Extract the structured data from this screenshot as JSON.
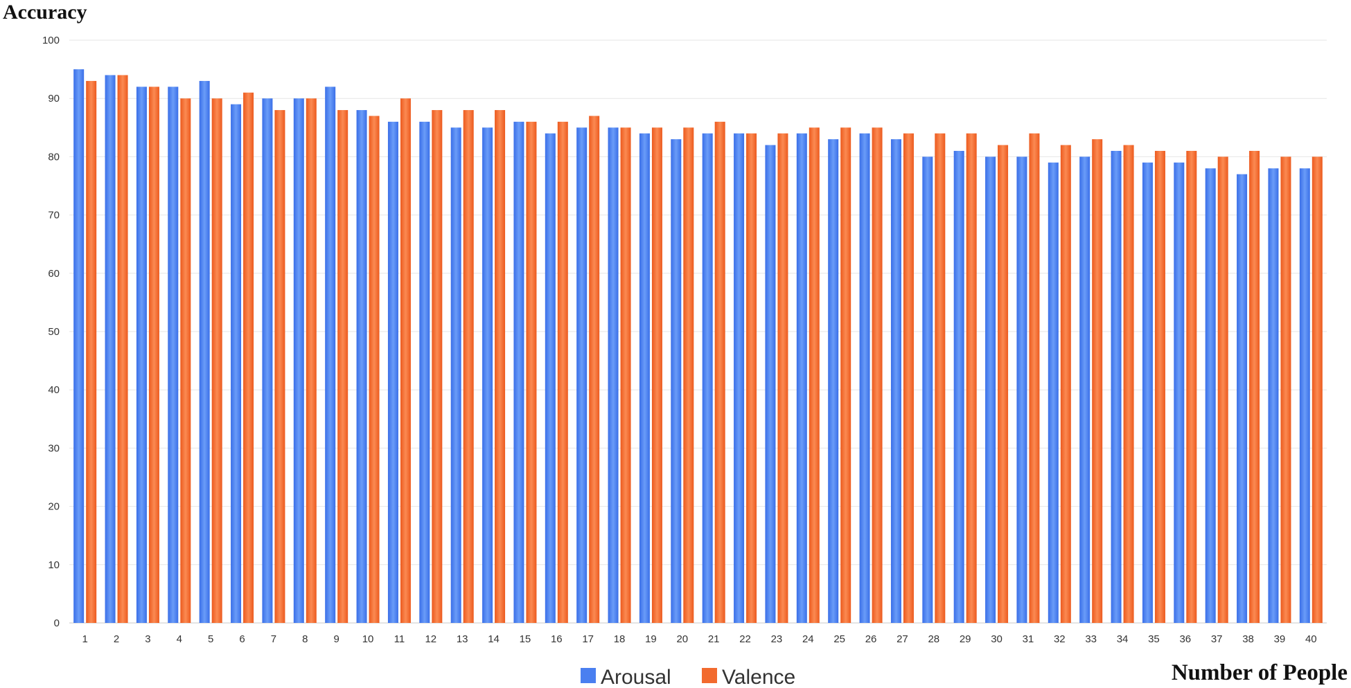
{
  "chart_data": {
    "type": "bar",
    "ylabel": "Accuracy",
    "xlabel": "Number of People",
    "ylim": [
      0,
      100
    ],
    "yticks": [
      0,
      10,
      20,
      30,
      40,
      50,
      60,
      70,
      80,
      90,
      100
    ],
    "grid": true,
    "legend_position": "bottom",
    "categories": [
      "1",
      "2",
      "3",
      "4",
      "5",
      "6",
      "7",
      "8",
      "9",
      "10",
      "11",
      "12",
      "13",
      "14",
      "15",
      "16",
      "17",
      "18",
      "19",
      "20",
      "21",
      "22",
      "23",
      "24",
      "25",
      "26",
      "27",
      "28",
      "29",
      "30",
      "31",
      "32",
      "33",
      "34",
      "35",
      "36",
      "37",
      "38",
      "39",
      "40"
    ],
    "series": [
      {
        "name": "Arousal",
        "color": "#4a7ff0",
        "values": [
          95,
          94,
          92,
          92,
          93,
          89,
          90,
          90,
          92,
          88,
          86,
          86,
          85,
          85,
          86,
          84,
          85,
          85,
          84,
          83,
          84,
          84,
          82,
          84,
          83,
          84,
          83,
          80,
          81,
          80,
          80,
          79,
          80,
          81,
          79,
          79,
          78,
          77,
          78,
          78
        ]
      },
      {
        "name": "Valence",
        "color": "#f26a2e",
        "values": [
          93,
          94,
          92,
          90,
          90,
          91,
          88,
          90,
          88,
          87,
          90,
          88,
          88,
          88,
          86,
          86,
          87,
          85,
          85,
          85,
          86,
          84,
          84,
          85,
          85,
          85,
          84,
          84,
          84,
          82,
          84,
          82,
          83,
          82,
          81,
          81,
          80,
          81,
          80,
          80
        ]
      }
    ]
  }
}
